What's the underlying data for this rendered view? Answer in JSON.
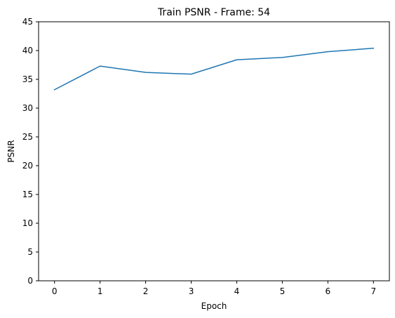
{
  "chart_data": {
    "type": "line",
    "title": "Train PSNR - Frame: 54",
    "xlabel": "Epoch",
    "ylabel": "PSNR",
    "xlim": [
      -0.35,
      7.35
    ],
    "ylim": [
      0,
      45
    ],
    "xticks": [
      0,
      1,
      2,
      3,
      4,
      5,
      6,
      7
    ],
    "yticks": [
      0,
      5,
      10,
      15,
      20,
      25,
      30,
      35,
      40,
      45
    ],
    "grid": false,
    "series": [
      {
        "x": [
          0,
          1,
          2,
          3,
          4,
          5,
          6,
          7
        ],
        "values": [
          33.2,
          37.3,
          36.2,
          35.9,
          38.4,
          38.8,
          39.8,
          40.4
        ],
        "color": "#1f77b4"
      }
    ]
  }
}
